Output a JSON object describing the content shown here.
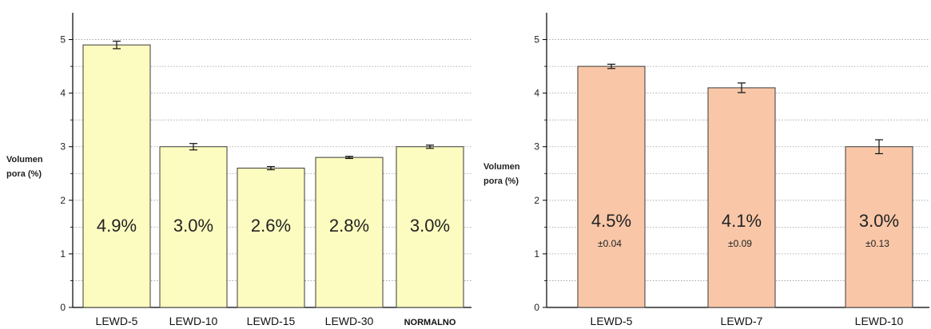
{
  "chart_data": [
    {
      "type": "bar",
      "ylabel_line1": "Volumen",
      "ylabel_line2": "pora (%)",
      "ylim": [
        0,
        5.5
      ],
      "y_ticks": [
        "0",
        "1",
        "2",
        "3",
        "4",
        "5"
      ],
      "grid": "horizontal dotted",
      "categories": [
        "LEWD-5",
        "LEWD-10",
        "LEWD-15",
        "LEWD-30",
        "NORMALNO"
      ],
      "values": [
        4.9,
        3.0,
        2.6,
        2.8,
        3.0
      ],
      "errors": [
        0.07,
        0.06,
        0.03,
        0.02,
        0.03
      ],
      "bar_labels": [
        "4.9%",
        "3.0%",
        "2.6%",
        "2.8%",
        "3.0%"
      ],
      "bar_color": "#fdfcc0"
    },
    {
      "type": "bar",
      "ylabel_line1": "Volumen",
      "ylabel_line2": "pora (%)",
      "ylim": [
        0,
        5.5
      ],
      "y_ticks": [
        "0",
        "1",
        "2",
        "3",
        "4",
        "5"
      ],
      "grid": "horizontal dotted",
      "categories": [
        "LEWD-5",
        "LEWD-7",
        "LEWD-10"
      ],
      "values": [
        4.5,
        4.1,
        3.0
      ],
      "errors": [
        0.04,
        0.09,
        0.13
      ],
      "bar_labels": [
        "4.5%",
        "4.1%",
        "3.0%"
      ],
      "bar_sublabels": [
        "±0.04",
        "±0.09",
        "±0.13"
      ],
      "bar_color": "#f9c7a8"
    }
  ]
}
